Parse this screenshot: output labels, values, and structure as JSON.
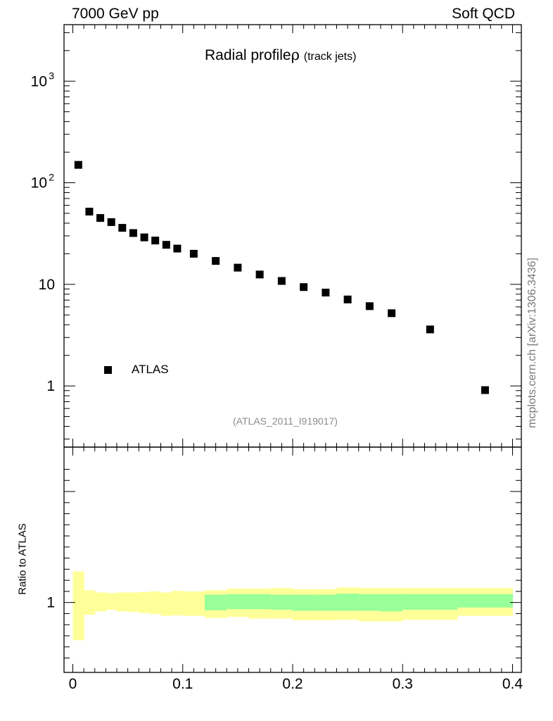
{
  "header": {
    "left": "7000 GeV pp",
    "right": "Soft QCD"
  },
  "title": {
    "main": "Radial profile",
    "symbol": "ρ",
    "sub": "(track jets)"
  },
  "legend": {
    "label": "ATLAS"
  },
  "analysis_id": "(ATLAS_2011_I919017)",
  "side_label": "mcplots.cern.ch [arXiv:1306.3436]",
  "ratio_ylabel": "Ratio to ATLAS",
  "colors": {
    "band_inner": "#99ff99",
    "band_outer": "#ffff99",
    "marker": "#000000",
    "axis": "#000000"
  },
  "chart_data": [
    {
      "type": "scatter",
      "panel": "main",
      "yscale": "log",
      "xlim": [
        -0.008,
        0.408
      ],
      "ylim": [
        0.25,
        3600
      ],
      "yticks": [
        {
          "value": 1,
          "label": "1"
        },
        {
          "value": 10,
          "label": "10"
        },
        {
          "value": 100,
          "label": "10²"
        },
        {
          "value": 1000,
          "label": "10³"
        }
      ],
      "series": [
        {
          "name": "ATLAS",
          "marker": "square",
          "x": [
            0.005,
            0.015,
            0.025,
            0.035,
            0.045,
            0.055,
            0.065,
            0.075,
            0.085,
            0.095,
            0.11,
            0.13,
            0.15,
            0.17,
            0.19,
            0.21,
            0.23,
            0.25,
            0.27,
            0.29,
            0.325,
            0.375
          ],
          "y": [
            150,
            52,
            45,
            41,
            36,
            32,
            29,
            27,
            24.5,
            22.5,
            20,
            17,
            14.6,
            12.5,
            10.8,
            9.4,
            8.3,
            7.1,
            6.1,
            5.2,
            3.6,
            0.91
          ]
        }
      ]
    },
    {
      "type": "area",
      "panel": "ratio",
      "xlim": [
        -0.008,
        0.408
      ],
      "ylim": [
        0.37,
        2.4
      ],
      "yticks": [
        {
          "value": 1,
          "label": "1"
        }
      ],
      "xticks": [
        {
          "value": 0,
          "label": "0"
        },
        {
          "value": 0.1,
          "label": "0.1"
        },
        {
          "value": 0.2,
          "label": "0.2"
        },
        {
          "value": 0.3,
          "label": "0.3"
        },
        {
          "value": 0.4,
          "label": "0.4"
        }
      ],
      "bins": [
        {
          "lo": 0.0,
          "hi": 0.01,
          "outer": [
            0.66,
            1.28
          ],
          "inner": null
        },
        {
          "lo": 0.01,
          "hi": 0.02,
          "outer": [
            0.89,
            1.11
          ],
          "inner": null
        },
        {
          "lo": 0.02,
          "hi": 0.03,
          "outer": [
            0.92,
            1.09
          ],
          "inner": null
        },
        {
          "lo": 0.03,
          "hi": 0.04,
          "outer": [
            0.935,
            1.085
          ],
          "inner": null
        },
        {
          "lo": 0.04,
          "hi": 0.05,
          "outer": [
            0.92,
            1.09
          ],
          "inner": null
        },
        {
          "lo": 0.05,
          "hi": 0.06,
          "outer": [
            0.915,
            1.09
          ],
          "inner": null
        },
        {
          "lo": 0.06,
          "hi": 0.07,
          "outer": [
            0.905,
            1.095
          ],
          "inner": null
        },
        {
          "lo": 0.07,
          "hi": 0.08,
          "outer": [
            0.895,
            1.1
          ],
          "inner": null
        },
        {
          "lo": 0.08,
          "hi": 0.09,
          "outer": [
            0.88,
            1.09
          ],
          "inner": null
        },
        {
          "lo": 0.09,
          "hi": 0.1,
          "outer": [
            0.885,
            1.105
          ],
          "inner": null
        },
        {
          "lo": 0.1,
          "hi": 0.12,
          "outer": [
            0.88,
            1.1
          ],
          "inner": null
        },
        {
          "lo": 0.12,
          "hi": 0.14,
          "outer": [
            0.86,
            1.11
          ],
          "inner": [
            0.93,
            1.07
          ]
        },
        {
          "lo": 0.14,
          "hi": 0.16,
          "outer": [
            0.87,
            1.125
          ],
          "inner": [
            0.94,
            1.075
          ]
        },
        {
          "lo": 0.16,
          "hi": 0.18,
          "outer": [
            0.855,
            1.125
          ],
          "inner": [
            0.94,
            1.075
          ]
        },
        {
          "lo": 0.18,
          "hi": 0.2,
          "outer": [
            0.855,
            1.13
          ],
          "inner": [
            0.935,
            1.07
          ]
        },
        {
          "lo": 0.2,
          "hi": 0.22,
          "outer": [
            0.84,
            1.12
          ],
          "inner": [
            0.925,
            1.07
          ]
        },
        {
          "lo": 0.22,
          "hi": 0.24,
          "outer": [
            0.84,
            1.12
          ],
          "inner": [
            0.925,
            1.07
          ]
        },
        {
          "lo": 0.24,
          "hi": 0.26,
          "outer": [
            0.845,
            1.135
          ],
          "inner": [
            0.925,
            1.08
          ]
        },
        {
          "lo": 0.26,
          "hi": 0.28,
          "outer": [
            0.83,
            1.13
          ],
          "inner": [
            0.925,
            1.075
          ]
        },
        {
          "lo": 0.28,
          "hi": 0.3,
          "outer": [
            0.83,
            1.13
          ],
          "inner": [
            0.92,
            1.075
          ]
        },
        {
          "lo": 0.3,
          "hi": 0.35,
          "outer": [
            0.845,
            1.13
          ],
          "inner": [
            0.935,
            1.075
          ]
        },
        {
          "lo": 0.35,
          "hi": 0.4,
          "outer": [
            0.88,
            1.13
          ],
          "inner": [
            0.955,
            1.075
          ]
        }
      ]
    }
  ]
}
